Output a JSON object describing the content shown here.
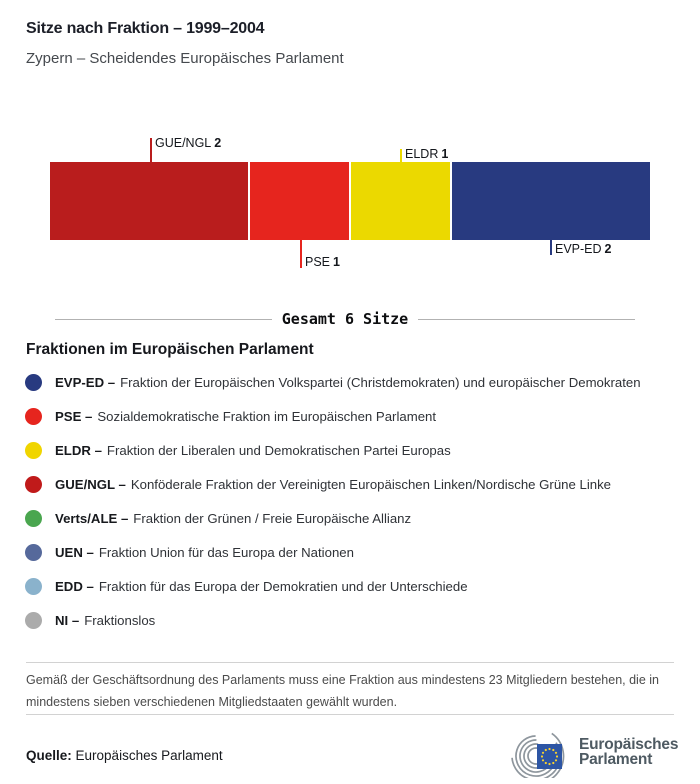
{
  "page": {
    "title": "Sitze nach Fraktion – 1999–2004",
    "subtitle": "Zypern – Scheidendes Europäisches Parlament"
  },
  "chart_data": {
    "type": "bar",
    "subtype": "horizontal-stacked-single-bar",
    "title": "Sitze nach Fraktion – 1999–2004",
    "subtitle": "Zypern – Scheidendes Europäisches Parlament",
    "categories": [
      "GUE/NGL",
      "PSE",
      "ELDR",
      "EVP-ED"
    ],
    "values": [
      2,
      1,
      1,
      2
    ],
    "total": 6,
    "total_label": "Gesamt 6 Sitze",
    "unit": "Sitze",
    "segments": [
      {
        "group": "GUE/NGL",
        "seats": 2,
        "color": "#b91d1d",
        "label_position": "above",
        "tick_length": 24
      },
      {
        "group": "PSE",
        "seats": 1,
        "color": "#e6251e",
        "label_position": "below",
        "tick_length": 28
      },
      {
        "group": "ELDR",
        "seats": 1,
        "color": "#ebd900",
        "label_position": "above",
        "tick_length": 13
      },
      {
        "group": "EVP-ED",
        "seats": 2,
        "color": "#283a80",
        "label_position": "below",
        "tick_length": 15
      }
    ]
  },
  "legend": {
    "heading": "Fraktionen im Europäischen Parlament",
    "items": [
      {
        "abbr": "EVP-ED –",
        "description": "Fraktion der Europäischen Volkspartei (Christdemokraten) und europäischer Demokraten",
        "color": "#283a80"
      },
      {
        "abbr": "PSE –",
        "description": "Sozialdemokratische Fraktion im Europäischen Parlament",
        "color": "#e6251e"
      },
      {
        "abbr": "ELDR –",
        "description": "Fraktion der Liberalen und Demokratischen Partei Europas",
        "color": "#f0d500"
      },
      {
        "abbr": "GUE/NGL –",
        "description": "Konföderale Fraktion der Vereinigten Europäischen Linken/Nordische Grüne Linke",
        "color": "#c01a1a"
      },
      {
        "abbr": "Verts/ALE –",
        "description": "Fraktion der Grünen / Freie Europäische Allianz",
        "color": "#4aa64f"
      },
      {
        "abbr": "UEN –",
        "description": "Fraktion Union für das Europa der Nationen",
        "color": "#56699b"
      },
      {
        "abbr": "EDD –",
        "description": "Fraktion für das Europa der Demokratien und der Unterschiede",
        "color": "#8ab2cc"
      },
      {
        "abbr": "NI –",
        "description": "Fraktionslos",
        "color": "#ababab"
      }
    ]
  },
  "footer": {
    "note": "Gemäß der Geschäftsordnung des Parlaments muss eine Fraktion aus mindestens 23 Mitgliedern bestehen, die in mindestens sieben verschiedenen Mitgliedstaaten gewählt wurden.",
    "source_label": "Quelle:",
    "source_value": "Europäisches Parlament",
    "logo_text_line1": "Europäisches",
    "logo_text_line2": "Parlament",
    "logo_flag_color": "#2d55a4",
    "logo_star_color": "#f8d12e"
  }
}
